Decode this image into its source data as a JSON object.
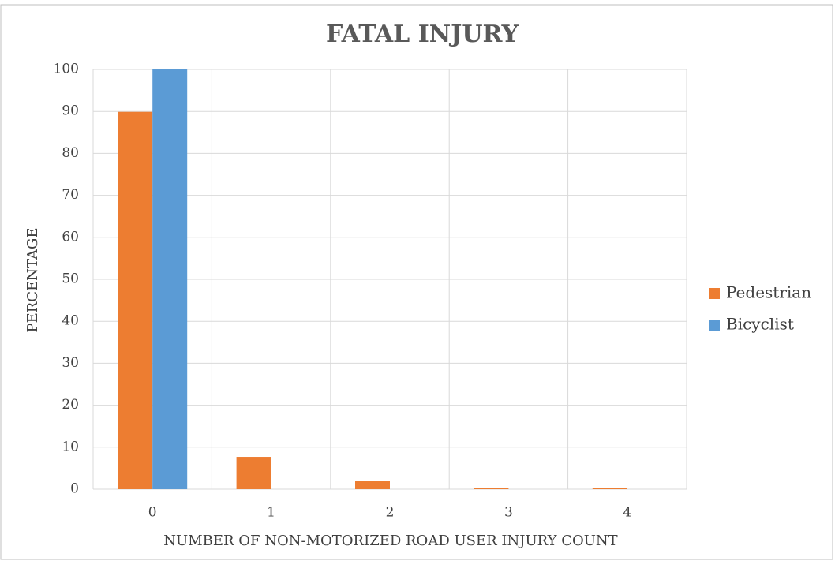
{
  "chart_data": {
    "type": "bar",
    "title": "FATAL INJURY",
    "x_label": "NUMBER OF NON-MOTORIZED ROAD USER INJURY COUNT",
    "y_label": "PERCENTAGE",
    "categories": [
      "0",
      "1",
      "2",
      "3",
      "4"
    ],
    "series": [
      {
        "name": "Pedestrian",
        "color": "#ed7d31",
        "values": [
          89.9,
          7.7,
          1.9,
          0.3,
          0.3
        ]
      },
      {
        "name": "Bicyclist",
        "color": "#5b9bd5",
        "values": [
          100,
          0,
          0,
          0,
          0
        ]
      }
    ],
    "ylim": [
      0,
      100
    ],
    "yticks": [
      0,
      10,
      20,
      30,
      40,
      50,
      60,
      70,
      80,
      90,
      100
    ],
    "grid": true,
    "legend": "right"
  }
}
